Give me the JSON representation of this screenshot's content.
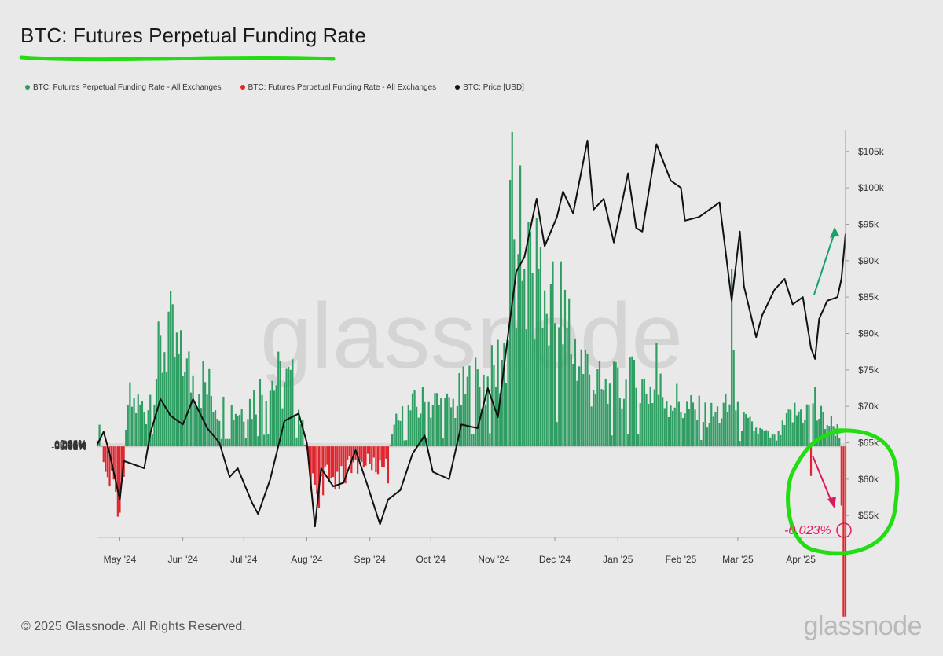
{
  "title": "BTC: Futures Perpetual Funding Rate",
  "legend": [
    {
      "label": "BTC: Futures Perpetual Funding Rate - All Exchanges",
      "color": "#2e9e63"
    },
    {
      "label": "BTC: Futures Perpetual Funding Rate - All Exchanges",
      "color": "#e0262e"
    },
    {
      "label": "BTC: Price [USD]",
      "color": "#111111"
    }
  ],
  "footer": "© 2025 Glassnode. All Rights Reserved.",
  "brand": "glassnode",
  "watermark": "glassnode",
  "colors": {
    "positive": "#2e9e63",
    "negative": "#e0262e",
    "price": "#111111",
    "highlight": "#22dd11",
    "annotation": "#e0185a",
    "up_arrow": "#1aa06a"
  },
  "annotation": {
    "text": "-0.023%"
  },
  "chart_data": {
    "type": "bar",
    "x_ticks": [
      "May '24",
      "Jun '24",
      "Jul '24",
      "Aug '24",
      "Sep '24",
      "Oct '24",
      "Nov '24",
      "Dec '24",
      "Jan '25",
      "Feb '25",
      "Mar '25",
      "Apr '25"
    ],
    "y_left": {
      "label": "",
      "ticks": [
        "0.04%",
        "0.035%",
        "0.03%",
        "0.025%",
        "0.02%",
        "0.015%",
        "0.01%",
        "0.005%",
        "0%",
        "-0.005%",
        "-0.01%"
      ],
      "range": [
        -0.0123,
        0.0428
      ]
    },
    "y_right": {
      "label": "",
      "ticks": [
        "$105k",
        "$100k",
        "$95k",
        "$90k",
        "$85k",
        "$80k",
        "$75k",
        "$70k",
        "$65k",
        "$60k",
        "$55k"
      ],
      "range": [
        52000,
        108000
      ]
    },
    "date_range": [
      "2024-04-20",
      "2025-04-23"
    ],
    "funding_anchors": [
      [
        "2024-04-20",
        0.004
      ],
      [
        "2024-04-24",
        -0.004
      ],
      [
        "2024-05-02",
        -0.007
      ],
      [
        "2024-05-05",
        0.006
      ],
      [
        "2024-05-14",
        0.005
      ],
      [
        "2024-05-21",
        0.012
      ],
      [
        "2024-05-24",
        0.015
      ],
      [
        "2024-06-01",
        0.01
      ],
      [
        "2024-06-10",
        0.009
      ],
      [
        "2024-06-20",
        0.005
      ],
      [
        "2024-06-30",
        0.005
      ],
      [
        "2024-07-05",
        0.006
      ],
      [
        "2024-07-15",
        0.009
      ],
      [
        "2024-07-25",
        0.008
      ],
      [
        "2024-07-29",
        0.004
      ],
      [
        "2024-08-03",
        -0.004
      ],
      [
        "2024-08-08",
        -0.006
      ],
      [
        "2024-08-15",
        -0.004
      ],
      [
        "2024-08-22",
        -0.003
      ],
      [
        "2024-08-30",
        -0.002
      ],
      [
        "2024-09-07",
        -0.003
      ],
      [
        "2024-09-14",
        0.003
      ],
      [
        "2024-09-22",
        0.005
      ],
      [
        "2024-10-01",
        0.006
      ],
      [
        "2024-10-10",
        0.005
      ],
      [
        "2024-10-20",
        0.008
      ],
      [
        "2024-10-31",
        0.009
      ],
      [
        "2024-11-08",
        0.014
      ],
      [
        "2024-11-14",
        0.025
      ],
      [
        "2024-11-22",
        0.02
      ],
      [
        "2024-11-30",
        0.017
      ],
      [
        "2024-12-07",
        0.015
      ],
      [
        "2024-12-15",
        0.011
      ],
      [
        "2024-12-25",
        0.007
      ],
      [
        "2025-01-05",
        0.008
      ],
      [
        "2025-01-15",
        0.008
      ],
      [
        "2025-01-25",
        0.007
      ],
      [
        "2025-02-04",
        0.005
      ],
      [
        "2025-02-15",
        0.004
      ],
      [
        "2025-02-25",
        0.005
      ],
      [
        "2025-03-05",
        0.003
      ],
      [
        "2025-03-12",
        0.002
      ],
      [
        "2025-03-20",
        0.001
      ],
      [
        "2025-03-27",
        0.004
      ],
      [
        "2025-04-03",
        0.005
      ],
      [
        "2025-04-10",
        0.004
      ],
      [
        "2025-04-16",
        0.003
      ],
      [
        "2025-04-20",
        0.002
      ]
    ],
    "funding_points": [
      [
        "2024-05-25",
        0.0182
      ],
      [
        "2024-06-02",
        0.01
      ],
      [
        "2024-08-03",
        -0.006
      ],
      [
        "2024-09-10",
        -0.005
      ],
      [
        "2024-11-09",
        0.036
      ],
      [
        "2024-11-10",
        0.0425
      ],
      [
        "2024-11-11",
        0.028
      ],
      [
        "2024-11-13",
        0.026
      ],
      [
        "2024-11-16",
        0.024
      ],
      [
        "2024-11-23",
        0.024
      ],
      [
        "2024-11-30",
        0.025
      ],
      [
        "2024-12-04",
        0.025
      ],
      [
        "2024-12-08",
        0.02
      ],
      [
        "2024-12-16",
        0.013
      ],
      [
        "2025-01-07",
        0.012
      ],
      [
        "2025-01-20",
        0.014
      ],
      [
        "2025-02-26",
        0.024
      ],
      [
        "2025-02-27",
        0.013
      ],
      [
        "2025-04-06",
        -0.004
      ],
      [
        "2025-04-08",
        0.008
      ],
      [
        "2025-04-21",
        -0.008
      ],
      [
        "2025-04-22",
        -0.023
      ],
      [
        "2025-04-23",
        -0.023
      ]
    ],
    "price_points": [
      [
        "2024-04-20",
        64800
      ],
      [
        "2024-04-23",
        66500
      ],
      [
        "2024-04-26",
        63500
      ],
      [
        "2024-05-01",
        57200
      ],
      [
        "2024-05-03",
        62500
      ],
      [
        "2024-05-08",
        62000
      ],
      [
        "2024-05-13",
        61500
      ],
      [
        "2024-05-16",
        66300
      ],
      [
        "2024-05-21",
        71000
      ],
      [
        "2024-05-26",
        68700
      ],
      [
        "2024-06-01",
        67500
      ],
      [
        "2024-06-06",
        71000
      ],
      [
        "2024-06-13",
        67000
      ],
      [
        "2024-06-19",
        65000
      ],
      [
        "2024-06-24",
        60300
      ],
      [
        "2024-06-28",
        61500
      ],
      [
        "2024-07-05",
        56800
      ],
      [
        "2024-07-08",
        55200
      ],
      [
        "2024-07-14",
        60000
      ],
      [
        "2024-07-21",
        68000
      ],
      [
        "2024-07-28",
        69000
      ],
      [
        "2024-08-01",
        65000
      ],
      [
        "2024-08-05",
        53500
      ],
      [
        "2024-08-08",
        61500
      ],
      [
        "2024-08-14",
        59000
      ],
      [
        "2024-08-19",
        59500
      ],
      [
        "2024-08-25",
        64000
      ],
      [
        "2024-08-31",
        59000
      ],
      [
        "2024-09-06",
        53800
      ],
      [
        "2024-09-10",
        57200
      ],
      [
        "2024-09-16",
        58500
      ],
      [
        "2024-09-22",
        63500
      ],
      [
        "2024-09-28",
        66000
      ],
      [
        "2024-10-02",
        61000
      ],
      [
        "2024-10-10",
        60000
      ],
      [
        "2024-10-16",
        67500
      ],
      [
        "2024-10-24",
        67000
      ],
      [
        "2024-10-29",
        72500
      ],
      [
        "2024-11-03",
        68500
      ],
      [
        "2024-11-06",
        75500
      ],
      [
        "2024-11-12",
        88500
      ],
      [
        "2024-11-16",
        90500
      ],
      [
        "2024-11-22",
        98500
      ],
      [
        "2024-11-26",
        92000
      ],
      [
        "2024-12-02",
        96000
      ],
      [
        "2024-12-05",
        99500
      ],
      [
        "2024-12-10",
        96500
      ],
      [
        "2024-12-17",
        106500
      ],
      [
        "2024-12-20",
        97000
      ],
      [
        "2024-12-25",
        98500
      ],
      [
        "2024-12-30",
        92500
      ],
      [
        "2025-01-06",
        102000
      ],
      [
        "2025-01-10",
        94500
      ],
      [
        "2025-01-13",
        94000
      ],
      [
        "2025-01-20",
        106000
      ],
      [
        "2025-01-27",
        101000
      ],
      [
        "2025-02-01",
        100000
      ],
      [
        "2025-02-03",
        95500
      ],
      [
        "2025-02-10",
        96000
      ],
      [
        "2025-02-20",
        98000
      ],
      [
        "2025-02-26",
        84500
      ],
      [
        "2025-03-02",
        94000
      ],
      [
        "2025-03-04",
        86500
      ],
      [
        "2025-03-10",
        79500
      ],
      [
        "2025-03-13",
        82500
      ],
      [
        "2025-03-19",
        86000
      ],
      [
        "2025-03-24",
        87500
      ],
      [
        "2025-03-28",
        84000
      ],
      [
        "2025-04-02",
        85000
      ],
      [
        "2025-04-06",
        78000
      ],
      [
        "2025-04-08",
        76500
      ],
      [
        "2025-04-10",
        82000
      ],
      [
        "2025-04-14",
        84500
      ],
      [
        "2025-04-19",
        85000
      ],
      [
        "2025-04-21",
        87500
      ],
      [
        "2025-04-23",
        93700
      ]
    ]
  }
}
